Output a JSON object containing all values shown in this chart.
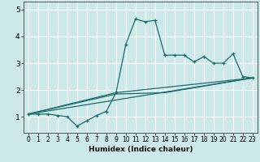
{
  "xlabel": "Humidex (Indice chaleur)",
  "ylabel": "",
  "bg_color": "#cce8e8",
  "grid_color": "#ffffff",
  "line_color": "#1a6b6b",
  "xlim": [
    -0.5,
    23.5
  ],
  "ylim": [
    0.4,
    5.3
  ],
  "yticks": [
    1,
    2,
    3,
    4,
    5
  ],
  "xticks": [
    0,
    1,
    2,
    3,
    4,
    5,
    6,
    7,
    8,
    9,
    10,
    11,
    12,
    13,
    14,
    15,
    16,
    17,
    18,
    19,
    20,
    21,
    22,
    23
  ],
  "line1_x": [
    0,
    1,
    2,
    3,
    4,
    5,
    6,
    7,
    8,
    9,
    10,
    11,
    12,
    13,
    14,
    15,
    16,
    17,
    18,
    19,
    20,
    21,
    22,
    23
  ],
  "line1_y": [
    1.1,
    1.1,
    1.1,
    1.05,
    1.0,
    0.65,
    0.85,
    1.05,
    1.2,
    1.9,
    3.7,
    4.65,
    4.55,
    4.6,
    3.3,
    3.3,
    3.3,
    3.05,
    3.25,
    3.0,
    3.0,
    3.35,
    2.5,
    2.45
  ],
  "line2_x": [
    0,
    23
  ],
  "line2_y": [
    1.1,
    2.45
  ],
  "line3_x": [
    0,
    9,
    23
  ],
  "line3_y": [
    1.1,
    1.9,
    2.45
  ],
  "line4_x": [
    0,
    9,
    14,
    23
  ],
  "line4_y": [
    1.1,
    1.85,
    1.9,
    2.45
  ]
}
